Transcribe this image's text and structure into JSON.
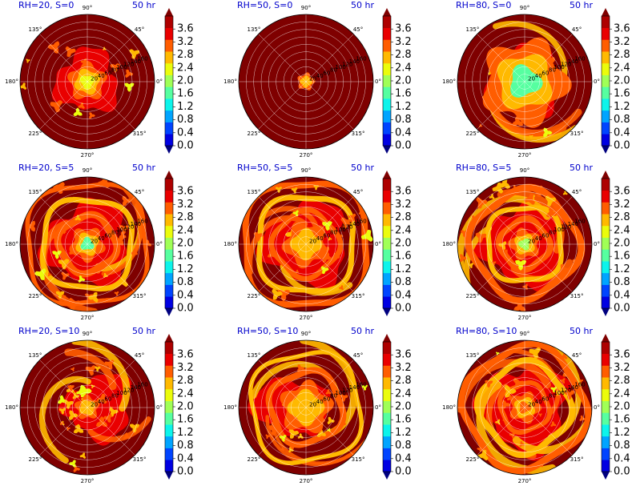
{
  "chart_data": [
    {
      "type": "heatmap",
      "title": "RH=20, S=0",
      "time_label": "50 hr",
      "pattern": "sparse-small-core",
      "core_level": 2.4
    },
    {
      "type": "heatmap",
      "title": "RH=50, S=0",
      "time_label": "50 hr",
      "pattern": "saturated-tiny-core",
      "core_level": 2.8
    },
    {
      "type": "heatmap",
      "title": "RH=80, S=0",
      "time_label": "50 hr",
      "pattern": "broad-core",
      "core_level": 1.6
    },
    {
      "type": "heatmap",
      "title": "RH=20, S=5",
      "time_label": "50 hr",
      "pattern": "ringed-core",
      "core_level": 1.6
    },
    {
      "type": "heatmap",
      "title": "RH=50, S=5",
      "time_label": "50 hr",
      "pattern": "ringed",
      "core_level": 2.8
    },
    {
      "type": "heatmap",
      "title": "RH=80, S=5",
      "time_label": "50 hr",
      "pattern": "spiral-core",
      "core_level": 1.8
    },
    {
      "type": "heatmap",
      "title": "RH=20, S=10",
      "time_label": "50 hr",
      "pattern": "asymmetric-east",
      "core_level": 2.8
    },
    {
      "type": "heatmap",
      "title": "RH=50, S=10",
      "time_label": "50 hr",
      "pattern": "asymmetric-west",
      "core_level": 2.8
    },
    {
      "type": "heatmap",
      "title": "RH=80, S=10",
      "time_label": "50 hr",
      "pattern": "spiral-bands",
      "core_level": 3.0
    }
  ],
  "polar_axes": {
    "angle_labels": [
      "0°",
      "45°",
      "90°",
      "135°",
      "180°",
      "225°",
      "270°",
      "315°"
    ],
    "radial_labels": [
      "20",
      "40",
      "60",
      "80",
      "100",
      "120",
      "140",
      "160"
    ],
    "radial_max": 180
  },
  "colorbar": {
    "ticks": [
      "0.0",
      "0.4",
      "0.8",
      "1.2",
      "1.6",
      "2.0",
      "2.4",
      "2.8",
      "3.2",
      "3.6"
    ],
    "min": 0,
    "max": 4,
    "extend": "both",
    "colormap": "jet",
    "colors": [
      "#00007f",
      "#0000e2",
      "#0044ff",
      "#00a4ff",
      "#0cf4eb",
      "#56ffa0",
      "#a0ff56",
      "#ebfc0c",
      "#ffb900",
      "#ff5d00",
      "#e90000",
      "#ae0000",
      "#7f0000"
    ]
  }
}
